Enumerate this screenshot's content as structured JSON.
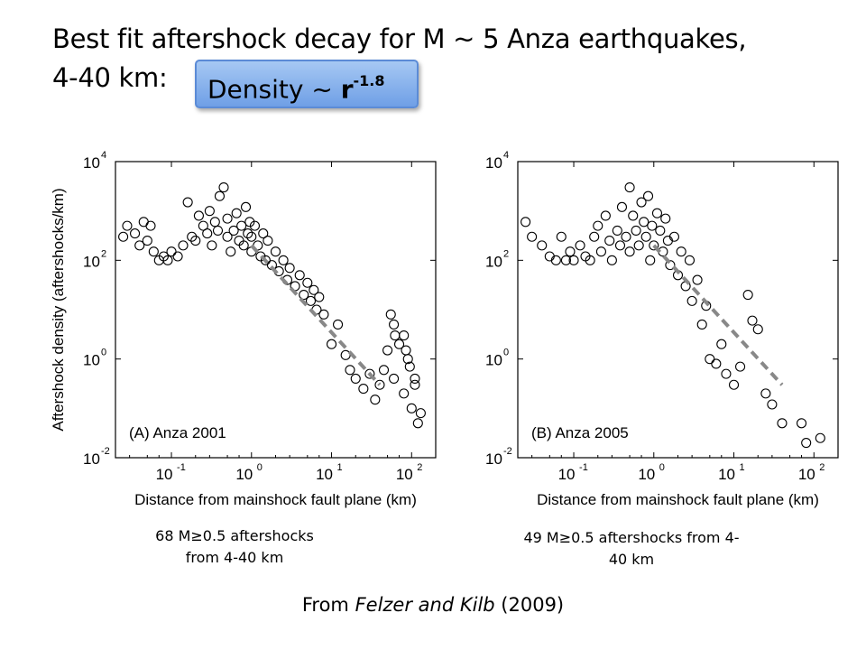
{
  "slide": {
    "title_line1": "Best fit aftershock decay for M ~ 5 Anza earthquakes,",
    "title_line2": "4-40 km:",
    "density_prefix": "Density ~ ",
    "density_base": "r",
    "density_exponent": "-1.8",
    "caption_left_line1": "68 M≥0.5 aftershocks",
    "caption_left_line2": "from 4-40 km",
    "caption_right_line1": "49 M≥0.5 aftershocks from 4-",
    "caption_right_line2": "40 km",
    "source_prefix": "From ",
    "source_authors": "Felzer and Kilb",
    "source_year": " (2009)",
    "accent_color": "#7ea9ec"
  },
  "chart_data": [
    {
      "type": "scatter",
      "panel_label": "(A)  Anza 2001",
      "xlabel": "Distance from mainshock fault plane (km)",
      "ylabel": "Aftershock density (aftershocks/km)",
      "x_scale": "log",
      "y_scale": "log",
      "xlim": [
        0.02,
        200
      ],
      "ylim": [
        0.01,
        10000
      ],
      "x_ticks": [
        {
          "base": "10",
          "exp": "-1"
        },
        {
          "base": "10",
          "exp": "0"
        },
        {
          "base": "10",
          "exp": "1"
        },
        {
          "base": "10",
          "exp": "2"
        }
      ],
      "y_ticks": [
        {
          "base": "10",
          "exp": "-2"
        },
        {
          "base": "10",
          "exp": "0"
        },
        {
          "base": "10",
          "exp": "2"
        },
        {
          "base": "10",
          "exp": "4"
        }
      ],
      "fit_line": {
        "x": [
          1,
          40
        ],
        "y": [
          200,
          0.3
        ],
        "color": "#888888",
        "style": "dashed"
      },
      "points": [
        [
          0.025,
          300
        ],
        [
          0.028,
          500
        ],
        [
          0.035,
          350
        ],
        [
          0.04,
          200
        ],
        [
          0.045,
          600
        ],
        [
          0.05,
          250
        ],
        [
          0.055,
          500
        ],
        [
          0.06,
          150
        ],
        [
          0.07,
          100
        ],
        [
          0.08,
          120
        ],
        [
          0.09,
          100
        ],
        [
          0.1,
          150
        ],
        [
          0.12,
          120
        ],
        [
          0.14,
          200
        ],
        [
          0.16,
          1500
        ],
        [
          0.18,
          300
        ],
        [
          0.2,
          250
        ],
        [
          0.22,
          800
        ],
        [
          0.25,
          500
        ],
        [
          0.28,
          350
        ],
        [
          0.3,
          1000
        ],
        [
          0.32,
          200
        ],
        [
          0.35,
          600
        ],
        [
          0.38,
          400
        ],
        [
          0.4,
          2000
        ],
        [
          0.45,
          3000
        ],
        [
          0.5,
          300
        ],
        [
          0.5,
          700
        ],
        [
          0.55,
          150
        ],
        [
          0.6,
          400
        ],
        [
          0.65,
          900
        ],
        [
          0.7,
          250
        ],
        [
          0.75,
          500
        ],
        [
          0.8,
          200
        ],
        [
          0.85,
          1200
        ],
        [
          0.9,
          350
        ],
        [
          0.95,
          600
        ],
        [
          1.0,
          150
        ],
        [
          1.0,
          300
        ],
        [
          1.1,
          500
        ],
        [
          1.2,
          200
        ],
        [
          1.3,
          120
        ],
        [
          1.4,
          350
        ],
        [
          1.5,
          100
        ],
        [
          1.6,
          250
        ],
        [
          1.8,
          80
        ],
        [
          2.0,
          150
        ],
        [
          2.2,
          60
        ],
        [
          2.5,
          100
        ],
        [
          2.8,
          40
        ],
        [
          3.0,
          70
        ],
        [
          3.5,
          30
        ],
        [
          4.0,
          50
        ],
        [
          4.5,
          20
        ],
        [
          5.0,
          35
        ],
        [
          5.5,
          15
        ],
        [
          6.0,
          25
        ],
        [
          6.5,
          10
        ],
        [
          7.0,
          18
        ],
        [
          8,
          8
        ],
        [
          10,
          2
        ],
        [
          12,
          5
        ],
        [
          15,
          1.2
        ],
        [
          17,
          0.6
        ],
        [
          20,
          0.4
        ],
        [
          25,
          0.25
        ],
        [
          30,
          0.5
        ],
        [
          35,
          0.15
        ],
        [
          40,
          0.3
        ],
        [
          45,
          0.6
        ],
        [
          50,
          1.5
        ],
        [
          60,
          0.4
        ],
        [
          70,
          2.0
        ],
        [
          80,
          0.2
        ],
        [
          90,
          1.0
        ],
        [
          100,
          0.1
        ],
        [
          110,
          0.4
        ],
        [
          120,
          0.05
        ],
        [
          55,
          8
        ],
        [
          60,
          5
        ],
        [
          62,
          3
        ],
        [
          80,
          3
        ],
        [
          85,
          1.5
        ],
        [
          95,
          0.7
        ],
        [
          110,
          0.3
        ],
        [
          130,
          0.08
        ]
      ]
    },
    {
      "type": "scatter",
      "panel_label": "(B)  Anza 2005",
      "xlabel": "Distance from mainshock fault plane (km)",
      "ylabel": "",
      "x_scale": "log",
      "y_scale": "log",
      "xlim": [
        0.02,
        200
      ],
      "ylim": [
        0.01,
        10000
      ],
      "x_ticks": [
        {
          "base": "10",
          "exp": "-1"
        },
        {
          "base": "10",
          "exp": "0"
        },
        {
          "base": "10",
          "exp": "1"
        },
        {
          "base": "10",
          "exp": "2"
        }
      ],
      "y_ticks": [
        {
          "base": "10",
          "exp": "-2"
        },
        {
          "base": "10",
          "exp": "0"
        },
        {
          "base": "10",
          "exp": "2"
        },
        {
          "base": "10",
          "exp": "4"
        }
      ],
      "fit_line": {
        "x": [
          1,
          40
        ],
        "y": [
          200,
          0.3
        ],
        "color": "#888888",
        "style": "dashed"
      },
      "points": [
        [
          0.025,
          600
        ],
        [
          0.03,
          300
        ],
        [
          0.04,
          200
        ],
        [
          0.05,
          120
        ],
        [
          0.06,
          100
        ],
        [
          0.07,
          300
        ],
        [
          0.08,
          100
        ],
        [
          0.09,
          150
        ],
        [
          0.1,
          100
        ],
        [
          0.12,
          200
        ],
        [
          0.14,
          120
        ],
        [
          0.16,
          100
        ],
        [
          0.18,
          300
        ],
        [
          0.2,
          500
        ],
        [
          0.22,
          150
        ],
        [
          0.25,
          800
        ],
        [
          0.28,
          250
        ],
        [
          0.3,
          100
        ],
        [
          0.35,
          400
        ],
        [
          0.38,
          200
        ],
        [
          0.4,
          1200
        ],
        [
          0.45,
          300
        ],
        [
          0.5,
          150
        ],
        [
          0.5,
          3000
        ],
        [
          0.55,
          800
        ],
        [
          0.6,
          400
        ],
        [
          0.65,
          200
        ],
        [
          0.7,
          1500
        ],
        [
          0.75,
          600
        ],
        [
          0.8,
          300
        ],
        [
          0.85,
          2000
        ],
        [
          0.9,
          100
        ],
        [
          0.95,
          500
        ],
        [
          1.0,
          200
        ],
        [
          1.1,
          900
        ],
        [
          1.2,
          400
        ],
        [
          1.3,
          150
        ],
        [
          1.4,
          700
        ],
        [
          1.5,
          250
        ],
        [
          1.6,
          80
        ],
        [
          1.8,
          300
        ],
        [
          2.0,
          50
        ],
        [
          2.2,
          150
        ],
        [
          2.5,
          30
        ],
        [
          2.8,
          100
        ],
        [
          3.0,
          15
        ],
        [
          3.5,
          40
        ],
        [
          4.0,
          5
        ],
        [
          4.5,
          12
        ],
        [
          5.0,
          1.0
        ],
        [
          6.0,
          0.8
        ],
        [
          7.0,
          2.0
        ],
        [
          8.0,
          0.5
        ],
        [
          10,
          0.3
        ],
        [
          12,
          0.7
        ],
        [
          15,
          20
        ],
        [
          17,
          6
        ],
        [
          20,
          4
        ],
        [
          25,
          0.2
        ],
        [
          30,
          0.12
        ],
        [
          40,
          0.05
        ],
        [
          70,
          0.05
        ],
        [
          80,
          0.02
        ],
        [
          120,
          0.025
        ]
      ]
    }
  ]
}
